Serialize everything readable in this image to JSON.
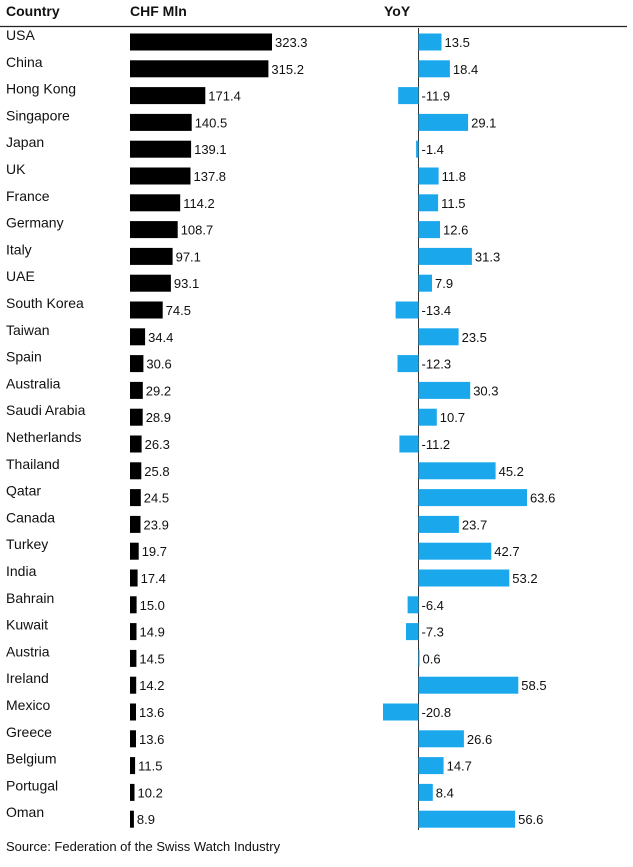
{
  "headers": {
    "country": "Country",
    "value": "CHF Mln",
    "yoy": "YoY"
  },
  "source": "Source: Federation of the Swiss Watch Industry",
  "colors": {
    "value_bar": "#000000",
    "yoy_bar": "#1aa7ec",
    "axis": "#333333",
    "header_rule": "#222222"
  },
  "chart_data": [
    {
      "type": "bar",
      "orientation": "horizontal",
      "xlabel": "CHF Mln",
      "categories": [
        "USA",
        "China",
        "Hong Kong",
        "Singapore",
        "Japan",
        "UK",
        "France",
        "Germany",
        "Italy",
        "UAE",
        "South Korea",
        "Taiwan",
        "Spain",
        "Australia",
        "Saudi Arabia",
        "Netherlands",
        "Thailand",
        "Qatar",
        "Canada",
        "Turkey",
        "India",
        "Bahrain",
        "Kuwait",
        "Austria",
        "Ireland",
        "Mexico",
        "Greece",
        "Belgium",
        "Portugal",
        "Oman"
      ],
      "series": [
        {
          "values": [
            323.3,
            315.2,
            171.4,
            140.5,
            139.1,
            137.8,
            114.2,
            108.7,
            97.1,
            93.1,
            74.5,
            34.4,
            30.6,
            29.2,
            28.9,
            26.3,
            25.8,
            24.5,
            23.9,
            19.7,
            17.4,
            15.0,
            14.9,
            14.5,
            14.2,
            13.6,
            13.6,
            11.5,
            10.2,
            8.9
          ],
          "labels": [
            "323.3",
            "315.2",
            "171.4",
            "140.5",
            "139.1",
            "137.8",
            "114.2",
            "108.7",
            "97.1",
            "93.1",
            "74.5",
            "34.4",
            "30.6",
            "29.2",
            "28.9",
            "26.3",
            "25.8",
            "24.5",
            "23.9",
            "19.7",
            "17.4",
            "15.0",
            "14.9",
            "14.5",
            "14.2",
            "13.6",
            "13.6",
            "11.5",
            "10.2",
            "8.9"
          ]
        }
      ]
    },
    {
      "type": "bar",
      "orientation": "horizontal",
      "xlabel": "YoY",
      "categories": [
        "USA",
        "China",
        "Hong Kong",
        "Singapore",
        "Japan",
        "UK",
        "France",
        "Germany",
        "Italy",
        "UAE",
        "South Korea",
        "Taiwan",
        "Spain",
        "Australia",
        "Saudi Arabia",
        "Netherlands",
        "Thailand",
        "Qatar",
        "Canada",
        "Turkey",
        "India",
        "Bahrain",
        "Kuwait",
        "Austria",
        "Ireland",
        "Mexico",
        "Greece",
        "Belgium",
        "Portugal",
        "Oman"
      ],
      "series": [
        {
          "values": [
            13.5,
            18.4,
            -11.9,
            29.1,
            -1.4,
            11.8,
            11.5,
            12.6,
            31.3,
            7.9,
            -13.4,
            23.5,
            -12.3,
            30.3,
            10.7,
            -11.2,
            45.2,
            63.6,
            23.7,
            42.7,
            53.2,
            -6.4,
            -7.3,
            0.6,
            58.5,
            -20.8,
            26.6,
            14.7,
            8.4,
            56.6
          ],
          "labels": [
            "13.5",
            "18.4",
            "-11.9",
            "29.1",
            "-1.4",
            "11.8",
            "11.5",
            "12.6",
            "31.3",
            "7.9",
            "-13.4",
            "23.5",
            "-12.3",
            "30.3",
            "10.7",
            "-11.2",
            "45.2",
            "63.6",
            "23.7",
            "42.7",
            "53.2",
            "-6.4",
            "-7.3",
            "0.6",
            "58.5",
            "-20.8",
            "26.6",
            "14.7",
            "8.4",
            "56.6"
          ]
        }
      ]
    }
  ]
}
